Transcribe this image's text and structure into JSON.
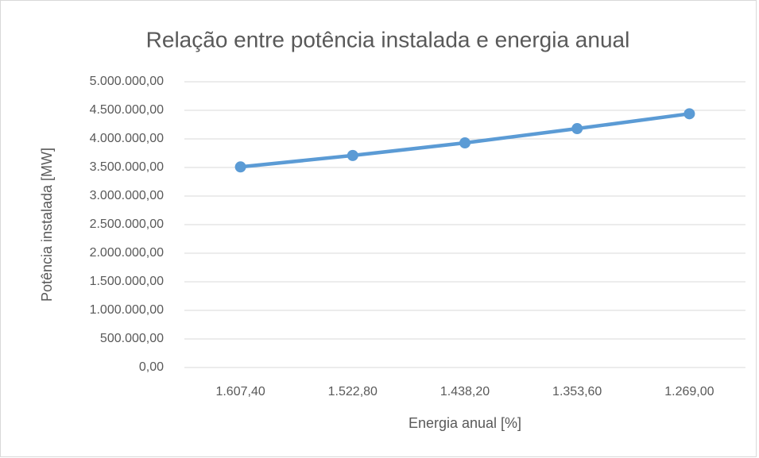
{
  "chart_data": {
    "type": "line",
    "title": "Relação entre potência instalada e energia anual",
    "x_label": "Energia anual [%]",
    "y_label": "Potência instalada [MW]",
    "categories": [
      "1.607,40",
      "1.522,80",
      "1.438,20",
      "1.353,60",
      "1.269,00"
    ],
    "series": [
      {
        "name": "Potência instalada [MW]",
        "color": "#5b9bd5",
        "values": [
          3510000,
          3710000,
          3930000,
          4180000,
          4440000
        ]
      }
    ],
    "ylim": [
      0,
      5000000
    ],
    "yticks": [
      {
        "value": 0,
        "label": "0,00"
      },
      {
        "value": 500000,
        "label": "500.000,00"
      },
      {
        "value": 1000000,
        "label": "1.000.000,00"
      },
      {
        "value": 1500000,
        "label": "1.500.000,00"
      },
      {
        "value": 2000000,
        "label": "2.000.000,00"
      },
      {
        "value": 2500000,
        "label": "2.500.000,00"
      },
      {
        "value": 3000000,
        "label": "3.000.000,00"
      },
      {
        "value": 3500000,
        "label": "3.500.000,00"
      },
      {
        "value": 4000000,
        "label": "4.000.000,00"
      },
      {
        "value": 4500000,
        "label": "4.500.000,00"
      },
      {
        "value": 5000000,
        "label": "5.000.000,00"
      }
    ],
    "grid": true
  }
}
